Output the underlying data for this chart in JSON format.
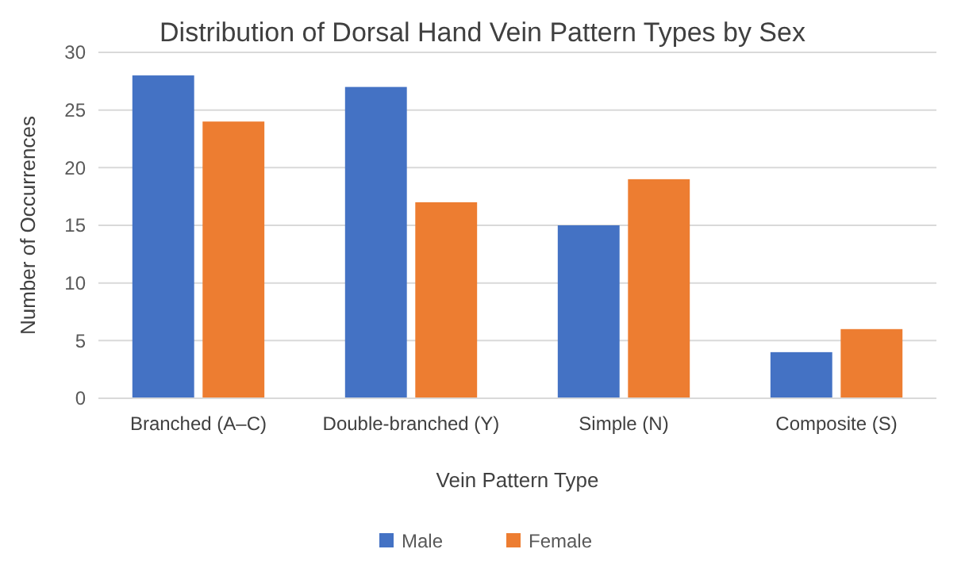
{
  "chart_data": {
    "type": "bar",
    "title": "Distribution of Dorsal Hand Vein Pattern Types by Sex",
    "xlabel": "Vein Pattern Type",
    "ylabel": "Number of Occurrences",
    "categories": [
      "Branched (A–C)",
      "Double-branched (Y)",
      "Simple (N)",
      "Composite (S)"
    ],
    "series": [
      {
        "name": "Male",
        "color": "#4472c4",
        "values": [
          28,
          27,
          15,
          4
        ]
      },
      {
        "name": "Female",
        "color": "#ed7d31",
        "values": [
          24,
          17,
          19,
          6
        ]
      }
    ],
    "ylim": [
      0,
      30
    ],
    "yticks": [
      0,
      5,
      10,
      15,
      20,
      25,
      30
    ],
    "grid": "y",
    "legend": "bottom"
  }
}
